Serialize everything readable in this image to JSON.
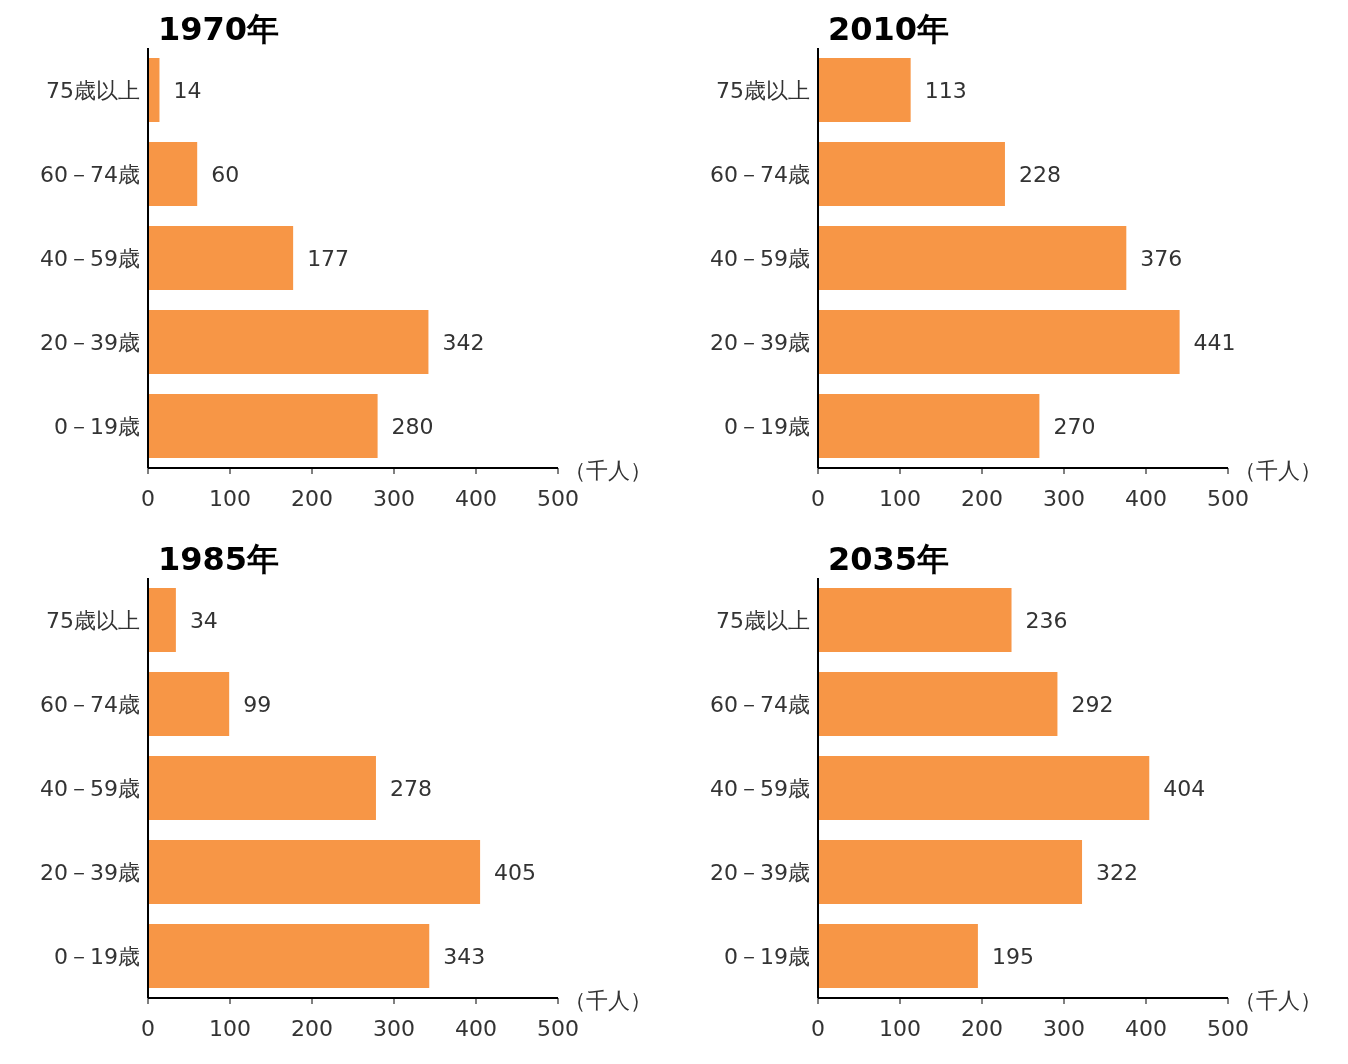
{
  "chart_data": [
    {
      "type": "bar",
      "orientation": "horizontal",
      "title": "1970年",
      "xlabel": "（千人）",
      "categories": [
        "75歳以上",
        "60－74歳",
        "40－59歳",
        "20－39歳",
        "0－19歳"
      ],
      "values": [
        14,
        60,
        177,
        342,
        280
      ],
      "color": "#f79646",
      "xlim": [
        0,
        500
      ],
      "xticks": [
        0,
        100,
        200,
        300,
        400,
        500
      ],
      "data_labels": true,
      "grid": false,
      "legend": false
    },
    {
      "type": "bar",
      "orientation": "horizontal",
      "title": "2010年",
      "xlabel": "（千人）",
      "categories": [
        "75歳以上",
        "60－74歳",
        "40－59歳",
        "20－39歳",
        "0－19歳"
      ],
      "values": [
        113,
        228,
        376,
        441,
        270
      ],
      "color": "#f79646",
      "xlim": [
        0,
        500
      ],
      "xticks": [
        0,
        100,
        200,
        300,
        400,
        500
      ],
      "data_labels": true,
      "grid": false,
      "legend": false
    },
    {
      "type": "bar",
      "orientation": "horizontal",
      "title": "1985年",
      "xlabel": "（千人）",
      "categories": [
        "75歳以上",
        "60－74歳",
        "40－59歳",
        "20－39歳",
        "0－19歳"
      ],
      "values": [
        34,
        99,
        278,
        405,
        343
      ],
      "color": "#f79646",
      "xlim": [
        0,
        500
      ],
      "xticks": [
        0,
        100,
        200,
        300,
        400,
        500
      ],
      "data_labels": true,
      "grid": false,
      "legend": false
    },
    {
      "type": "bar",
      "orientation": "horizontal",
      "title": "2035年",
      "xlabel": "（千人）",
      "categories": [
        "75歳以上",
        "60－74歳",
        "40－59歳",
        "20－39歳",
        "0－19歳"
      ],
      "values": [
        236,
        292,
        404,
        322,
        195
      ],
      "color": "#f79646",
      "xlim": [
        0,
        500
      ],
      "xticks": [
        0,
        100,
        200,
        300,
        400,
        500
      ],
      "data_labels": true,
      "grid": false,
      "legend": false
    }
  ]
}
